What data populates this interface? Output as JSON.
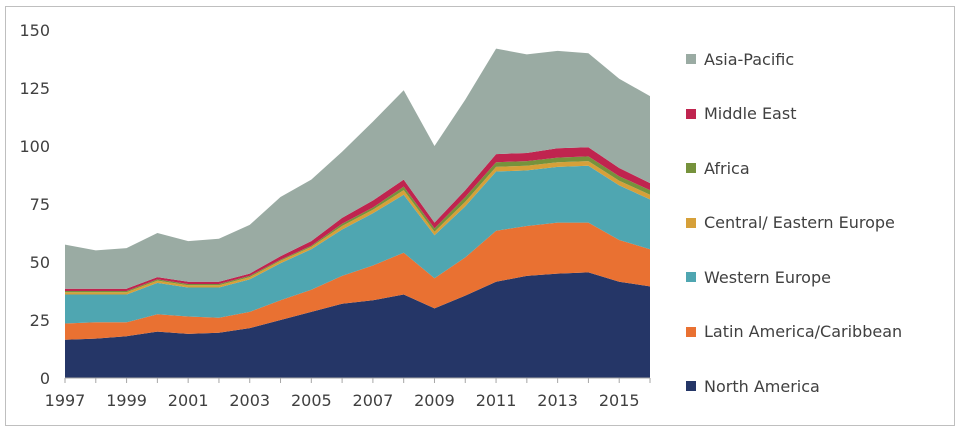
{
  "chart_data": {
    "type": "area",
    "stacked": true,
    "title": "",
    "xlabel": "",
    "ylabel": "",
    "ylim": [
      0,
      150
    ],
    "yticks": [
      0,
      25,
      50,
      75,
      100,
      125,
      150
    ],
    "xticks": [
      "1997",
      "1999",
      "2001",
      "2003",
      "2005",
      "2007",
      "2009",
      "2011",
      "2013",
      "2015"
    ],
    "x": [
      1997,
      1998,
      1999,
      2000,
      2001,
      2002,
      2003,
      2004,
      2005,
      2006,
      2007,
      2008,
      2009,
      2010,
      2011,
      2012,
      2013,
      2014,
      2015,
      2016
    ],
    "series": [
      {
        "name": "North America",
        "color": "#253667",
        "values": [
          16.5,
          17,
          18,
          20,
          19,
          19.5,
          21.5,
          25,
          28.5,
          32,
          33.5,
          36,
          30,
          35.5,
          41.5,
          44,
          45,
          45.5,
          41.5,
          39.5
        ]
      },
      {
        "name": "Latin America/Caribbean",
        "color": "#e97132",
        "values": [
          7,
          7,
          6,
          7.5,
          7.5,
          6.5,
          7,
          8.5,
          9.5,
          12,
          15,
          18,
          13,
          16.5,
          22,
          21.5,
          22,
          21.5,
          18,
          16
        ]
      },
      {
        "name": "Western Europe",
        "color": "#4fa6b1",
        "values": [
          12.5,
          12,
          12,
          13.5,
          12.5,
          13,
          14,
          16,
          17.5,
          20,
          22.5,
          25,
          18.5,
          22,
          25.5,
          24,
          24,
          24.5,
          23.5,
          21.5
        ]
      },
      {
        "name": "Central/ Eastern Europe",
        "color": "#d6a039",
        "values": [
          1,
          1,
          1,
          1,
          1,
          1,
          1,
          1,
          1,
          1.5,
          1.5,
          2,
          1.5,
          2,
          2,
          2,
          2,
          2,
          2,
          2
        ]
      },
      {
        "name": "Africa",
        "color": "#76923c",
        "values": [
          0.5,
          0.5,
          0.5,
          0.5,
          0.5,
          0.5,
          0.5,
          0.5,
          0.5,
          1,
          1,
          1.5,
          1.5,
          2,
          2,
          2,
          2,
          2,
          2,
          2
        ]
      },
      {
        "name": "Middle East",
        "color": "#c0244f",
        "values": [
          1,
          1,
          1,
          1,
          1,
          1,
          1,
          1.5,
          2,
          2.5,
          3,
          3,
          2.5,
          3,
          3.5,
          3.5,
          4,
          4,
          3.5,
          3
        ]
      },
      {
        "name": "Asia-Pacific",
        "color": "#9aaba3",
        "values": [
          19,
          16.5,
          17.5,
          19,
          17.5,
          18.5,
          21,
          25.5,
          26.5,
          28.5,
          34,
          38.5,
          33,
          39,
          45.5,
          42.5,
          42,
          40.5,
          38.5,
          37.5
        ]
      }
    ],
    "legend_order": [
      "Asia-Pacific",
      "Middle East",
      "Africa",
      "Central/ Eastern Europe",
      "Western Europe",
      "Latin America/Caribbean",
      "North America"
    ],
    "legend_position": "right",
    "grid": false
  }
}
